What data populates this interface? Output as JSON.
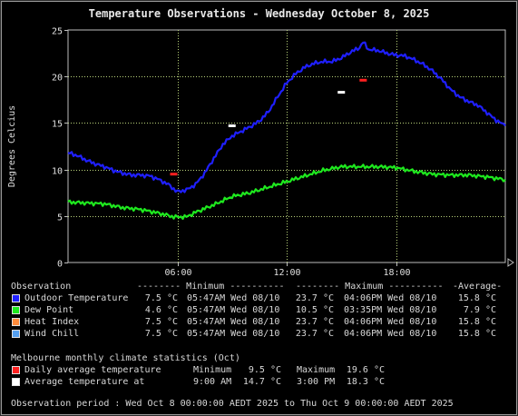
{
  "chart_data": {
    "type": "line",
    "title": "Temperature Observations - Wednesday October 8, 2025",
    "ylabel": "Degrees Celcius",
    "xlabel": "",
    "ylim": [
      0,
      25
    ],
    "xlim": [
      0,
      24
    ],
    "yticks": [
      "0",
      "5",
      "10",
      "15",
      "20",
      "25"
    ],
    "xticks": [
      {
        "v": 6,
        "label": "06:00"
      },
      {
        "v": 12,
        "label": "12:00"
      },
      {
        "v": 18,
        "label": "18:00"
      }
    ],
    "grid": true,
    "series": [
      {
        "name": "Outdoor Temperature",
        "color": "#1f1fff",
        "x": [
          0,
          0.5,
          1,
          1.5,
          2,
          2.5,
          3,
          3.5,
          4,
          4.5,
          5,
          5.5,
          5.8,
          6,
          6.5,
          7,
          7.5,
          8,
          8.5,
          9,
          9.5,
          10,
          10.5,
          11,
          11.5,
          12,
          12.5,
          13,
          13.5,
          14,
          14.5,
          15,
          15.5,
          16,
          16.2,
          16.5,
          17,
          17.5,
          18,
          18.5,
          19,
          19.5,
          20,
          20.5,
          21,
          21.5,
          22,
          22.5,
          23,
          23.5,
          24
        ],
        "y": [
          11.8,
          11.5,
          11.0,
          10.6,
          10.3,
          9.9,
          9.6,
          9.4,
          9.4,
          9.3,
          8.9,
          8.4,
          7.9,
          7.6,
          7.8,
          8.4,
          9.6,
          11.2,
          12.7,
          13.6,
          14.1,
          14.6,
          15.2,
          16.2,
          17.8,
          19.3,
          20.3,
          21.0,
          21.4,
          21.6,
          21.6,
          22.0,
          22.6,
          23.1,
          23.7,
          22.9,
          22.8,
          22.5,
          22.3,
          22.2,
          21.8,
          21.3,
          20.6,
          19.7,
          18.6,
          17.8,
          17.3,
          16.9,
          16.1,
          15.3,
          14.7
        ]
      },
      {
        "name": "Dew Point",
        "color": "#1ee81e",
        "x": [
          0,
          1,
          2,
          3,
          4,
          5,
          5.8,
          6.5,
          7,
          8,
          9,
          10,
          11,
          12,
          13,
          14,
          15,
          16,
          17,
          18,
          19,
          20,
          21,
          22,
          23,
          24
        ],
        "y": [
          6.5,
          6.4,
          6.3,
          5.9,
          5.7,
          5.3,
          4.9,
          4.9,
          5.4,
          6.2,
          7.1,
          7.5,
          8.1,
          8.7,
          9.3,
          9.9,
          10.3,
          10.3,
          10.3,
          10.2,
          9.8,
          9.5,
          9.4,
          9.4,
          9.2,
          8.9
        ]
      },
      {
        "name": "Heat Index",
        "color": "#ff8c3c",
        "x": [],
        "y": []
      },
      {
        "name": "Wind Chill",
        "color": "#55a0f0",
        "x": [],
        "y": []
      }
    ],
    "markers": [
      {
        "name": "Daily average temperature",
        "color": "#ff2020",
        "points": [
          {
            "x": 5.8,
            "y": 9.5
          },
          {
            "x": 16.2,
            "y": 19.6
          }
        ]
      },
      {
        "name": "Average temperature at",
        "color": "#ffffff",
        "points": [
          {
            "x": 9.0,
            "y": 14.7
          },
          {
            "x": 15.0,
            "y": 18.3
          }
        ]
      }
    ]
  },
  "legend": {
    "header": {
      "observation": "Observation",
      "minimum": "-------- Minimum ----------",
      "maximum": "-------- Maximum ----------",
      "average": "-Average-"
    },
    "rows": [
      {
        "label": "Outdoor Temperature",
        "min_value": "7.5 °C",
        "min_time": "05:47AM Wed 08/10",
        "max_value": "23.7 °C",
        "max_time": "04:06PM Wed 08/10",
        "average": "15.8 °C"
      },
      {
        "label": "Dew Point",
        "min_value": "4.6 °C",
        "min_time": "05:47AM Wed 08/10",
        "max_value": "10.5 °C",
        "max_time": "03:35PM Wed 08/10",
        "average": "7.9 °C"
      },
      {
        "label": "Heat Index",
        "min_value": "7.5 °C",
        "min_time": "05:47AM Wed 08/10",
        "max_value": "23.7 °C",
        "max_time": "04:06PM Wed 08/10",
        "average": "15.8 °C"
      },
      {
        "label": "Wind Chill",
        "min_value": "7.5 °C",
        "min_time": "05:47AM Wed 08/10",
        "max_value": "23.7 °C",
        "max_time": "04:06PM Wed 08/10",
        "average": "15.8 °C"
      }
    ]
  },
  "climate": {
    "title": "Melbourne monthly climate statistics (Oct)",
    "daily": {
      "label": "Daily average temperature",
      "min_label": "Minimum",
      "min_value": "9.5 °C",
      "max_label": "Maximum",
      "max_value": "19.6 °C"
    },
    "at": {
      "label": "Average temperature at",
      "time1": "9:00 AM",
      "value1": "14.7 °C",
      "time2": "3:00 PM",
      "value2": "18.3 °C"
    }
  },
  "period": "Observation period : Wed Oct 8 00:00:00 AEDT 2025 to Thu Oct 9 00:00:00 AEDT 2025"
}
